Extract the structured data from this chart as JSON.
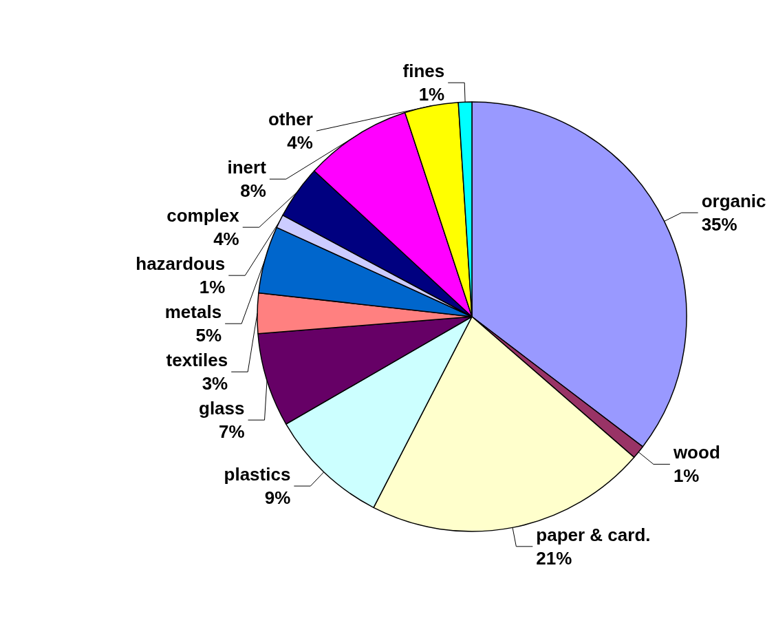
{
  "chart_data": {
    "type": "pie",
    "categories": [
      "organic",
      "wood",
      "paper & card.",
      "plastics",
      "glass",
      "textiles",
      "metals",
      "hazardous",
      "complex",
      "inert",
      "other",
      "fines"
    ],
    "values": [
      35,
      1,
      21,
      9,
      7,
      3,
      5,
      1,
      4,
      8,
      4,
      1
    ],
    "value_labels": [
      "35%",
      "1%",
      "21%",
      "9%",
      "7%",
      "3%",
      "5%",
      "1%",
      "4%",
      "8%",
      "4%",
      "1%"
    ],
    "colors": [
      "#9999ff",
      "#993366",
      "#ffffcc",
      "#ccffff",
      "#660066",
      "#ff8080",
      "#0066cc",
      "#ccccff",
      "#000080",
      "#ff00ff",
      "#ffff00",
      "#00ffff"
    ],
    "legend": false
  }
}
